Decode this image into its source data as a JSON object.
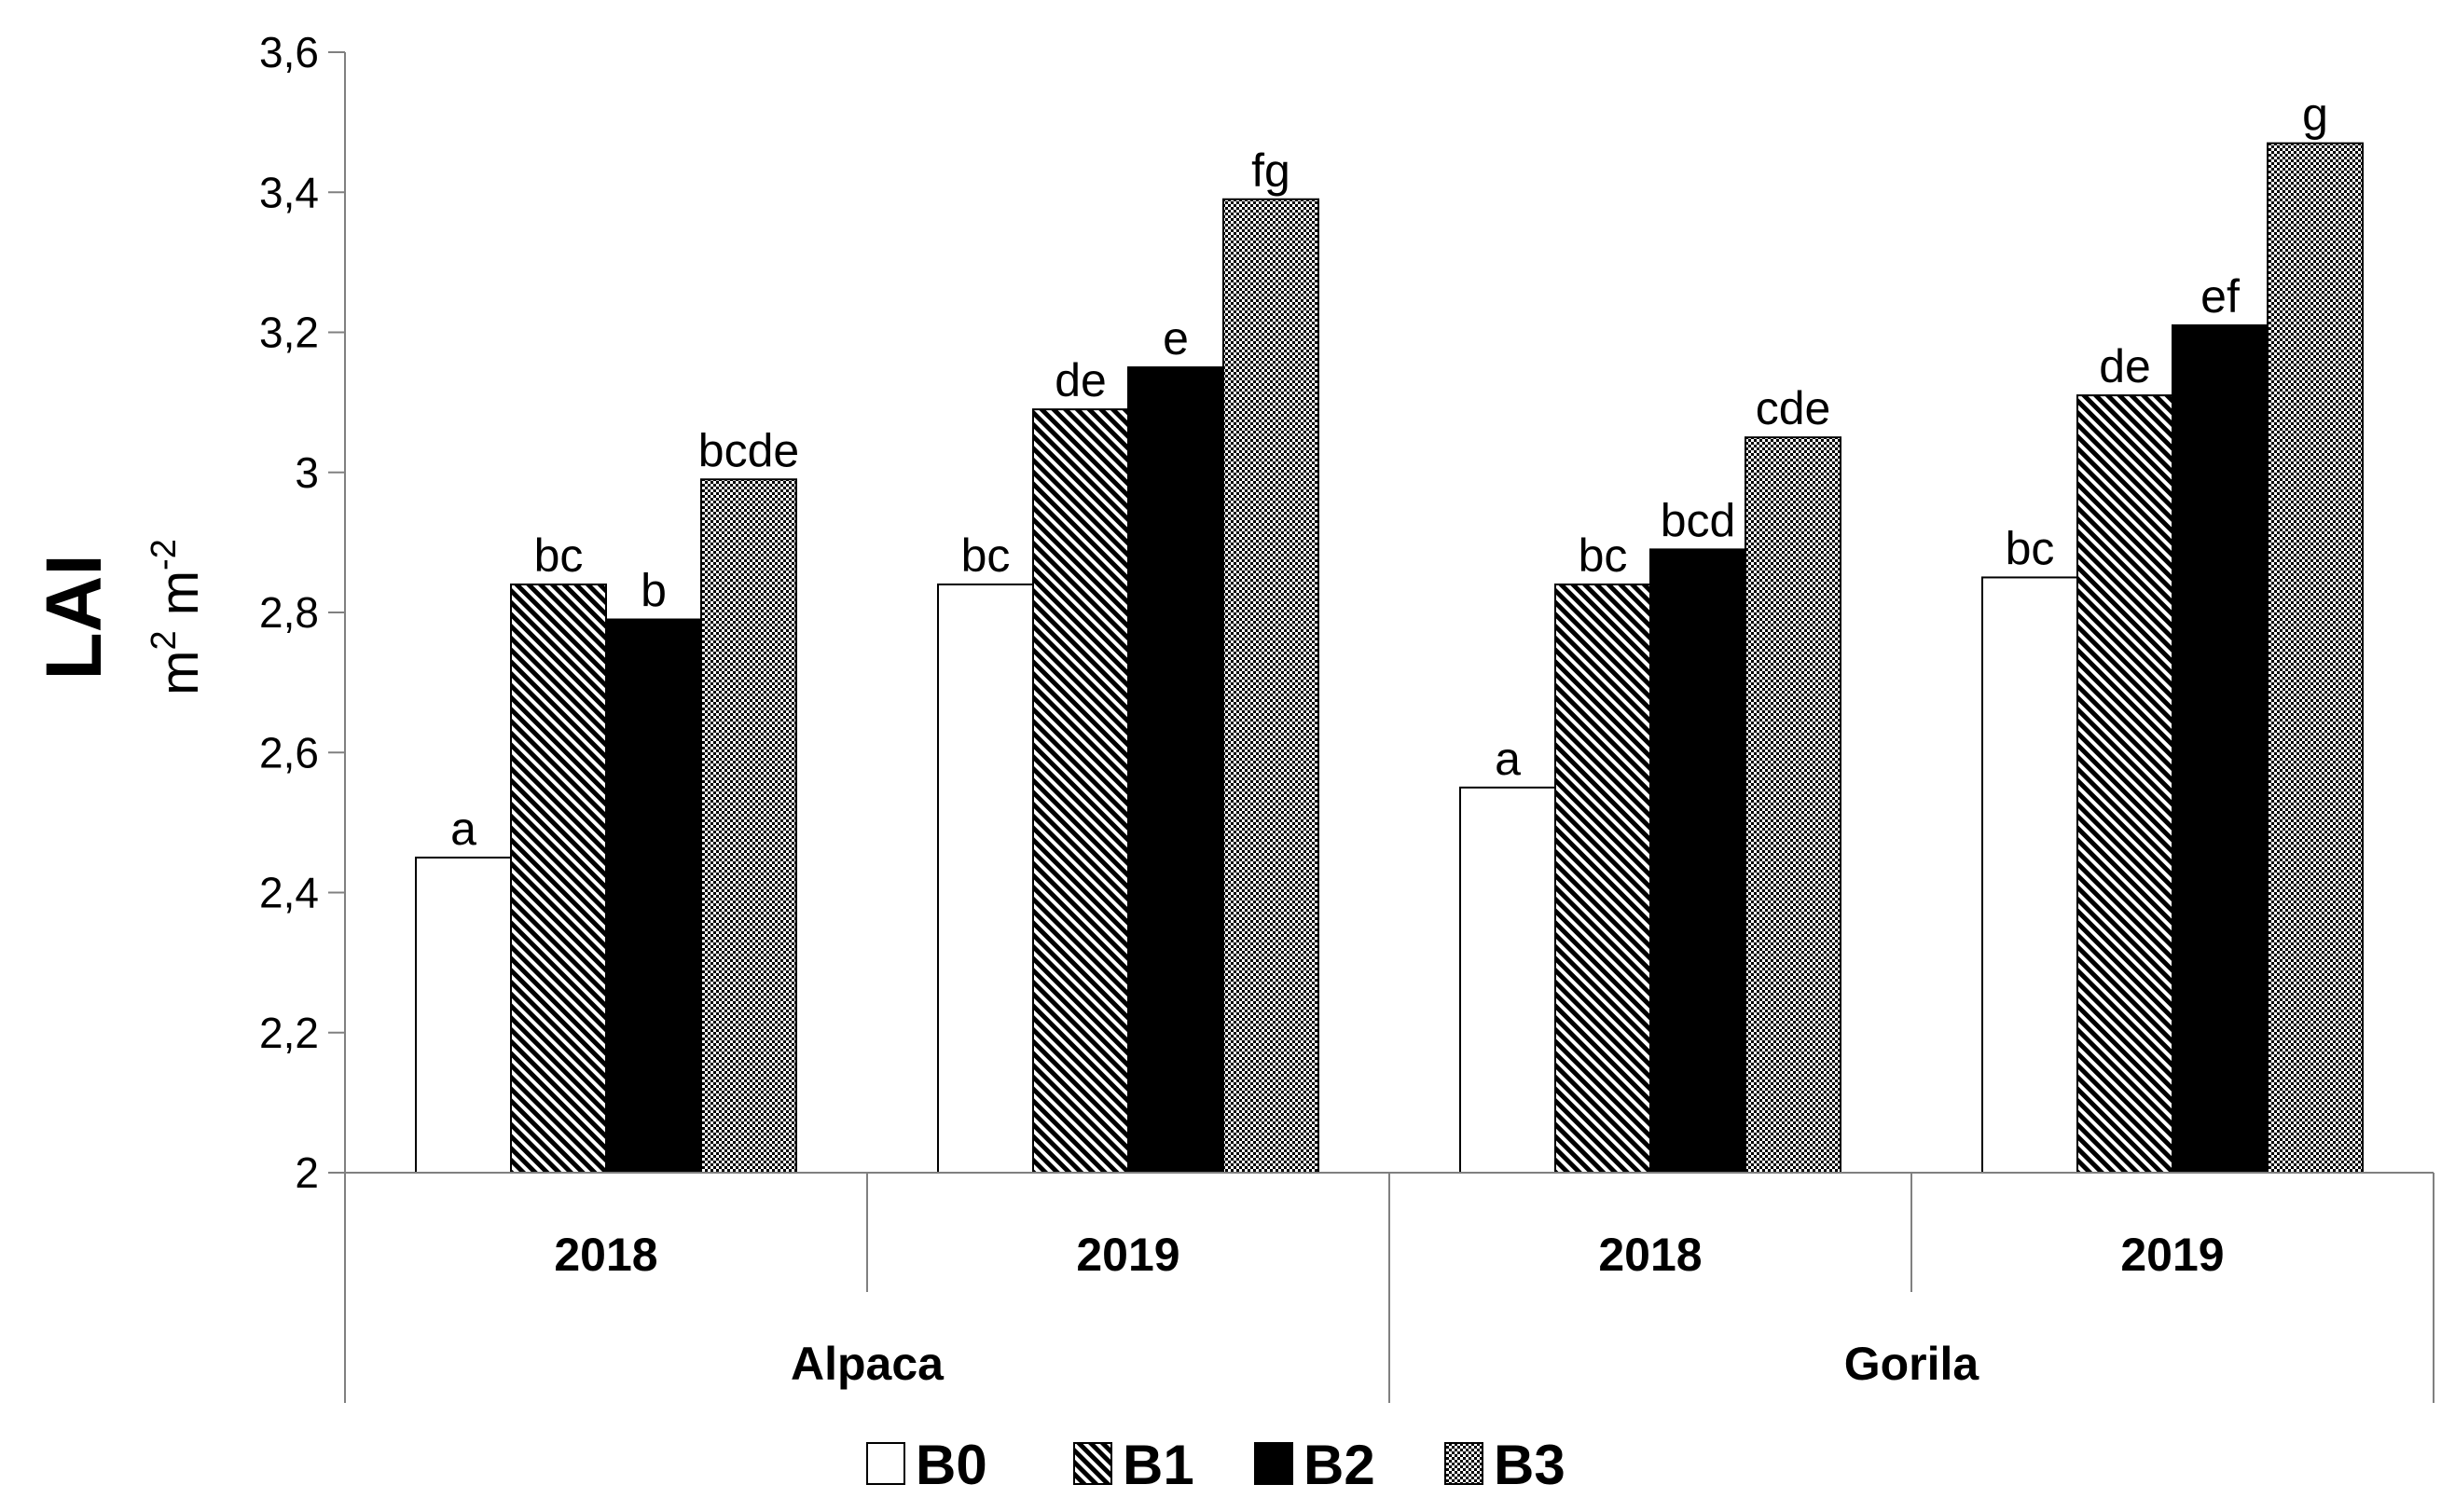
{
  "chart_data": {
    "type": "bar",
    "ylabel": "LAI",
    "yunit_base": "m",
    "yunit_exp1": "2",
    "yunit_exp2": "-2",
    "ylim": [
      2,
      3.6
    ],
    "yticks": [
      2,
      2.2,
      2.4,
      2.6,
      2.8,
      3,
      3.2,
      3.4,
      3.6
    ],
    "ytick_labels": [
      "2",
      "2,2",
      "2,4",
      "2,6",
      "2,8",
      "3",
      "3,2",
      "3,4",
      "3,6"
    ],
    "groups": [
      {
        "cultivar": "Alpaca",
        "years": [
          "2018",
          "2019"
        ]
      },
      {
        "cultivar": "Gorila",
        "years": [
          "2018",
          "2019"
        ]
      }
    ],
    "categories": [
      "Alpaca 2018",
      "Alpaca 2019",
      "Gorila 2018",
      "Gorila 2019"
    ],
    "series": [
      {
        "name": "B0",
        "pattern": "white",
        "values": [
          2.45,
          2.84,
          2.55,
          2.85
        ],
        "letters": [
          "a",
          "bc",
          "a",
          "bc"
        ]
      },
      {
        "name": "B1",
        "pattern": "diagonal",
        "values": [
          2.84,
          3.09,
          2.84,
          3.11
        ],
        "letters": [
          "bc",
          "de",
          "bc",
          "de"
        ]
      },
      {
        "name": "B2",
        "pattern": "black",
        "values": [
          2.79,
          3.15,
          2.89,
          3.21
        ],
        "letters": [
          "b",
          "e",
          "bcd",
          "ef"
        ]
      },
      {
        "name": "B3",
        "pattern": "checker",
        "values": [
          2.99,
          3.39,
          3.05,
          3.47
        ],
        "letters": [
          "bcde",
          "fg",
          "cde",
          "g"
        ]
      }
    ],
    "legend_position": "bottom",
    "grid": false
  }
}
